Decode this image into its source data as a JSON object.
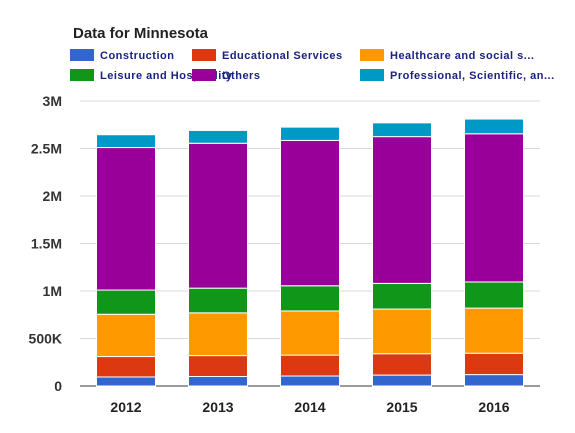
{
  "chart_data": {
    "type": "bar",
    "stacked": true,
    "title": "Data for Minnesota",
    "categories": [
      "2012",
      "2013",
      "2014",
      "2015",
      "2016"
    ],
    "series": [
      {
        "name": "Construction",
        "legend_label": "Construction",
        "color": "#3366cc",
        "values": [
          95000,
          100000,
          105000,
          115000,
          120000
        ]
      },
      {
        "name": "Educational Services",
        "legend_label": "Educational Services",
        "color": "#dc3912",
        "values": [
          215000,
          220000,
          220000,
          225000,
          225000
        ]
      },
      {
        "name": "Healthcare and social s...",
        "legend_label": "Healthcare and social s...",
        "color": "#ff9900",
        "values": [
          445000,
          450000,
          465000,
          470000,
          475000
        ]
      },
      {
        "name": "Leisure and Hospitality",
        "legend_label": "Leisure and Hospitality",
        "color": "#109618",
        "values": [
          255000,
          260000,
          265000,
          270000,
          275000
        ]
      },
      {
        "name": "Others",
        "legend_label": "Others",
        "color": "#990099",
        "values": [
          1500000,
          1525000,
          1530000,
          1545000,
          1560000
        ]
      },
      {
        "name": "Professional, Scientific, an...",
        "legend_label": "Professional, Scientific, an...",
        "color": "#0099c6",
        "values": [
          135000,
          135000,
          140000,
          145000,
          155000
        ]
      }
    ],
    "ylim": [
      0,
      3000000
    ],
    "yticks": [
      {
        "value": 0,
        "label": "0"
      },
      {
        "value": 500000,
        "label": "500K"
      },
      {
        "value": 1000000,
        "label": "1M"
      },
      {
        "value": 1500000,
        "label": "1.5M"
      },
      {
        "value": 2000000,
        "label": "2M"
      },
      {
        "value": 2500000,
        "label": "2.5M"
      },
      {
        "value": 3000000,
        "label": "3M"
      }
    ],
    "grid": true,
    "legend_position": "top"
  }
}
